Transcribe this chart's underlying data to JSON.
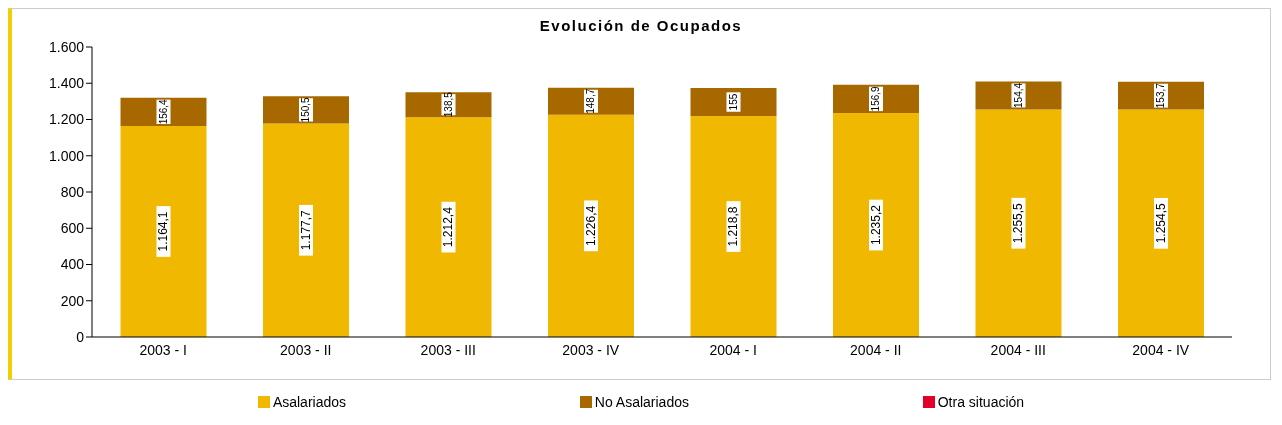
{
  "chart_data": {
    "type": "bar",
    "title": "Evolución de Ocupados",
    "stacked": true,
    "legend": "bottom",
    "grid": false,
    "categories": [
      "2003 - I",
      "2003 - II",
      "2003 - III",
      "2003 - IV",
      "2004 - I",
      "2004 - II",
      "2004 - III",
      "2004 - IV"
    ],
    "series": [
      {
        "name": "Asalariados",
        "color": "#f0b800",
        "values": [
          1164.1,
          1177.7,
          1212.4,
          1226.4,
          1218.8,
          1235.2,
          1255.5,
          1254.5
        ],
        "value_labels": [
          "1.164,1",
          "1.177,7",
          "1.212,4",
          "1.226,4",
          "1.218,8",
          "1.235,2",
          "1.255,5",
          "1.254,5"
        ]
      },
      {
        "name": "No Asalariados",
        "color": "#a86800",
        "values": [
          156.4,
          150.5,
          138.5,
          148.7,
          155,
          156.9,
          154.4,
          153.7
        ],
        "value_labels": [
          "156,4",
          "150,5",
          "138,5",
          "148,7",
          "155",
          "156,9",
          "154,4",
          "153,7"
        ]
      },
      {
        "name": "Otra situación",
        "color": "#e0002a",
        "values": [
          null,
          null,
          null,
          null,
          null,
          null,
          null,
          null
        ]
      }
    ],
    "ylim": [
      0,
      1600
    ],
    "yticks": [
      {
        "value": 0,
        "label": "0"
      },
      {
        "value": 200,
        "label": "200"
      },
      {
        "value": 400,
        "label": "400"
      },
      {
        "value": 600,
        "label": "600"
      },
      {
        "value": 800,
        "label": "800"
      },
      {
        "value": 1000,
        "label": "1.000"
      },
      {
        "value": 1200,
        "label": "1.200"
      },
      {
        "value": 1400,
        "label": "1.400"
      },
      {
        "value": 1600,
        "label": "1.600"
      }
    ]
  }
}
